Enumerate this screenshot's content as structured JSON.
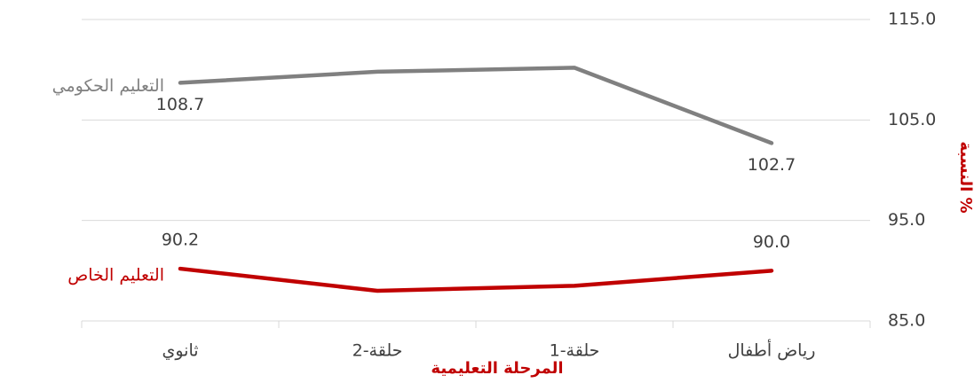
{
  "chart_data": {
    "type": "line",
    "x_label": "المرحلة التعليمية",
    "y_label": "النسبة %",
    "categories": [
      "ثانوي",
      "حلقة-2",
      "حلقة-1",
      "رياض أطفال"
    ],
    "series": [
      {
        "name": "التعليم الحكومي",
        "color": "#808080",
        "values": [
          108.7,
          109.8,
          110.2,
          102.7
        ],
        "value_labels": [
          "108.7",
          null,
          null,
          "102.7"
        ]
      },
      {
        "name": "التعليم الخاص",
        "color": "#c00000",
        "values": [
          90.2,
          88.0,
          88.5,
          90.0
        ],
        "value_labels": [
          "90.2",
          null,
          null,
          "90.0"
        ]
      }
    ],
    "ylim": [
      85,
      115
    ],
    "yticks": [
      {
        "value": 85,
        "label": "85.0"
      },
      {
        "value": 95,
        "label": "95.0"
      },
      {
        "value": 105,
        "label": "105.0"
      },
      {
        "value": 115,
        "label": "115.0"
      }
    ],
    "axis_label_color": "#c00000",
    "grid": true
  }
}
